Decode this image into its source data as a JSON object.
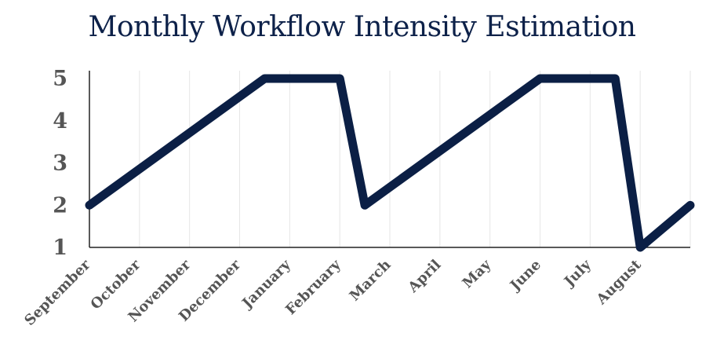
{
  "chart_data": {
    "type": "line",
    "title": "Monthly Workflow Intensity Estimation",
    "xlabel": "",
    "ylabel": "",
    "categories": [
      "September",
      "October",
      "November",
      "December",
      "January",
      "February",
      "March",
      "April",
      "May",
      "June",
      "July",
      "August"
    ],
    "y_ticks": [
      1,
      2,
      3,
      4,
      5
    ],
    "ylim": [
      1,
      5
    ],
    "grid": "vertical",
    "line_color": "#0b1f45",
    "series": [
      {
        "points": [
          {
            "x": 0,
            "y": 2
          },
          {
            "x": 3.5,
            "y": 5
          },
          {
            "x": 5,
            "y": 5
          },
          {
            "x": 5.5,
            "y": 2
          },
          {
            "x": 9,
            "y": 5
          },
          {
            "x": 10.5,
            "y": 5
          },
          {
            "x": 11,
            "y": 1
          },
          {
            "x": 12,
            "y": 2
          }
        ]
      }
    ]
  }
}
